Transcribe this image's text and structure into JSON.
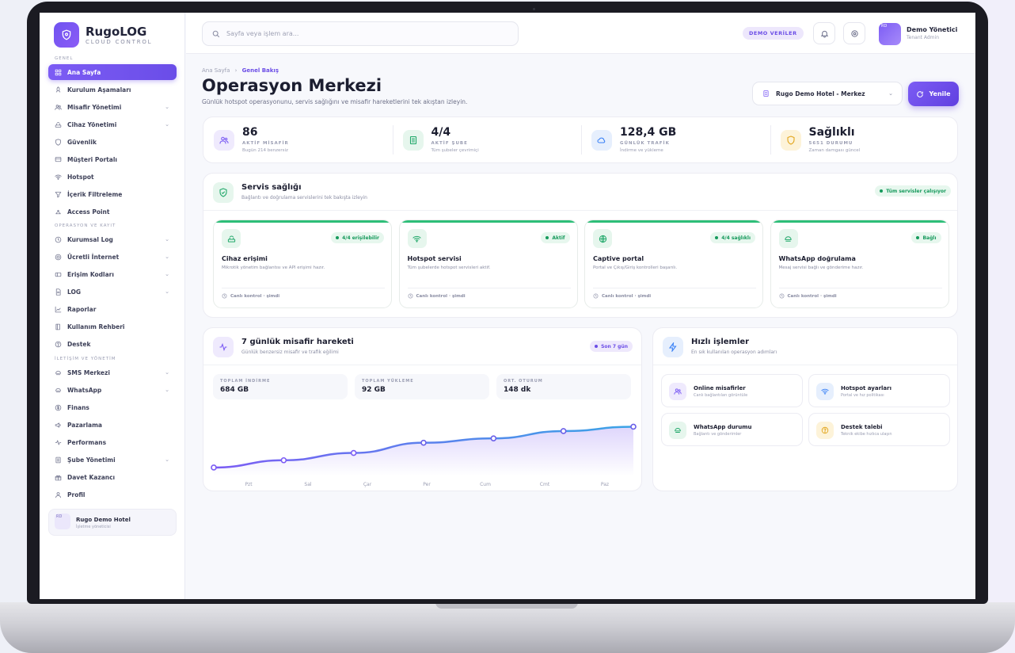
{
  "brand": {
    "name": "RugoLOG",
    "tagline": "CLOUD CONTROL"
  },
  "sidebar": {
    "sections": [
      "GENEL",
      "OPERASYON VE KAYIT",
      "İLETİŞİM VE YÖNETİM"
    ],
    "items": [
      {
        "label": "Ana Sayfa",
        "icon": "grid-icon",
        "active": true
      },
      {
        "label": "Kurulum Aşamaları",
        "icon": "rocket-icon"
      },
      {
        "label": "Misafir Yönetimi",
        "icon": "users-icon",
        "chevron": true
      },
      {
        "label": "Cihaz Yönetimi",
        "icon": "router-icon",
        "chevron": true
      },
      {
        "label": "Güvenlik",
        "icon": "shield-icon"
      },
      {
        "label": "Müşteri Portalı",
        "icon": "portal-icon"
      },
      {
        "label": "Hotspot",
        "icon": "wifi-icon"
      },
      {
        "label": "İçerik Filtreleme",
        "icon": "filter-icon"
      },
      {
        "label": "Access Point",
        "icon": "access-point-icon"
      },
      {
        "label": "Kurumsal Log",
        "icon": "log-icon",
        "chevron": true
      },
      {
        "label": "Ücretli İnternet",
        "icon": "coin-icon",
        "chevron": true
      },
      {
        "label": "Erişim Kodları",
        "icon": "ticket-icon",
        "chevron": true
      },
      {
        "label": "LOG",
        "icon": "file-icon",
        "chevron": true
      },
      {
        "label": "Raporlar",
        "icon": "chart-icon"
      },
      {
        "label": "Kullanım Rehberi",
        "icon": "book-icon"
      },
      {
        "label": "Destek",
        "icon": "help-icon"
      },
      {
        "label": "SMS Merkezi",
        "icon": "message-icon",
        "chevron": true
      },
      {
        "label": "WhatsApp",
        "icon": "whatsapp-icon",
        "chevron": true
      },
      {
        "label": "Finans",
        "icon": "dollar-icon"
      },
      {
        "label": "Pazarlama",
        "icon": "megaphone-icon"
      },
      {
        "label": "Performans",
        "icon": "pulse-icon"
      },
      {
        "label": "Şube Yönetimi",
        "icon": "building-icon",
        "chevron": true
      },
      {
        "label": "Davet Kazancı",
        "icon": "gift-icon"
      },
      {
        "label": "Profil",
        "icon": "user-icon"
      }
    ],
    "tenant": {
      "avatar": "RD",
      "name": "Rugo Demo Hotel",
      "role": "İşletme yöneticisi"
    }
  },
  "topbar": {
    "search_placeholder": "Sayfa veya işlem ara...",
    "badge": "DEMO VERİLER",
    "user": {
      "avatar": "RD",
      "name": "Demo Yönetici",
      "role": "Tenant Admin"
    }
  },
  "page": {
    "breadcrumb": [
      "Ana Sayfa",
      "›",
      "Genel Bakış"
    ],
    "title": "Operasyon Merkezi",
    "subtitle": "Günlük hotspot operasyonunu, servis sağlığını ve misafir hareketlerini tek akıştan izleyin.",
    "branch": "Rugo Demo Hotel - Merkez",
    "refresh": "Yenile"
  },
  "stats": [
    {
      "value": "86",
      "label": "AKTİF MİSAFİR",
      "sub": "Bugün 214 benzersiz",
      "icon": "users-icon",
      "color": "#7c5cf4",
      "bg": "#efeafd"
    },
    {
      "value": "4/4",
      "label": "AKTİF ŞUBE",
      "sub": "Tüm şubeler çevrimiçi",
      "icon": "building-icon",
      "color": "#21a86a",
      "bg": "#e6f6ed"
    },
    {
      "value": "128,4 GB",
      "label": "GÜNLÜK TRAFİK",
      "sub": "İndirme ve yükleme",
      "icon": "cloud-icon",
      "color": "#3b82f6",
      "bg": "#e6effd"
    },
    {
      "value": "Sağlıklı",
      "label": "5651 DURUMU",
      "sub": "Zaman damgası güncel",
      "icon": "shield-icon",
      "color": "#e2a51b",
      "bg": "#fdf3d9"
    }
  ],
  "service_health": {
    "title": "Servis sağlığı",
    "subtitle": "Bağlantı ve doğrulama servislerini tek bakışta izleyin",
    "status": "Tüm servisler çalışıyor",
    "items": [
      {
        "title": "Cihaz erişimi",
        "desc": "Mikrotik yönetim bağlantısı ve API erişimi hazır.",
        "status": "4/4 erişilebilir",
        "check": "Canlı kontrol · şimdi",
        "icon": "router-icon"
      },
      {
        "title": "Hotspot servisi",
        "desc": "Tüm şubelerde hotspot servisleri aktif.",
        "status": "Aktif",
        "check": "Canlı kontrol · şimdi",
        "icon": "wifi-icon"
      },
      {
        "title": "Captive portal",
        "desc": "Portal ve Çıkış/Giriş kontrolleri başarılı.",
        "status": "4/4 sağlıklı",
        "check": "Canlı kontrol · şimdi",
        "icon": "globe-icon"
      },
      {
        "title": "WhatsApp doğrulama",
        "desc": "Mesaj servisi bağlı ve gönderime hazır.",
        "status": "Bağlı",
        "check": "Canlı kontrol · şimdi",
        "icon": "message-icon"
      }
    ]
  },
  "guest_activity": {
    "title": "7 günlük misafir hareketi",
    "subtitle": "Günlük benzersiz misafir ve trafik eğilimi",
    "period": "Son 7 gün",
    "totals": [
      {
        "label": "TOPLAM İNDİRME",
        "value": "684 GB"
      },
      {
        "label": "TOPLAM YÜKLEME",
        "value": "92 GB"
      },
      {
        "label": "ORT. OTURUM",
        "value": "148 dk"
      }
    ],
    "chart": {
      "type": "area",
      "categories": [
        "Pzt",
        "Sal",
        "Çar",
        "Per",
        "Cum",
        "Cmt",
        "Paz"
      ],
      "values": [
        12,
        22,
        32,
        46,
        52,
        62,
        68
      ],
      "ylim": [
        0,
        100
      ],
      "line_colors": [
        "#7c5cf4",
        "#3ba4e6"
      ]
    }
  },
  "quick_actions": {
    "title": "Hızlı işlemler",
    "subtitle": "En sık kullanılan operasyon adımları",
    "items": [
      {
        "title": "Online misafirler",
        "sub": "Canlı bağlantıları görüntüle",
        "icon": "users-icon",
        "color": "#7c5cf4",
        "bg": "#efeafd"
      },
      {
        "title": "Hotspot ayarları",
        "sub": "Portal ve hız politikası",
        "icon": "wifi-icon",
        "color": "#3b82f6",
        "bg": "#e6effd"
      },
      {
        "title": "WhatsApp durumu",
        "sub": "Bağlantı ve gönderimler",
        "icon": "message-icon",
        "color": "#21a86a",
        "bg": "#e6f6ed"
      },
      {
        "title": "Destek talebi",
        "sub": "Teknik ekibe hızlıca ulaşın",
        "icon": "help-icon",
        "color": "#e2a51b",
        "bg": "#fdf3d9"
      }
    ]
  }
}
